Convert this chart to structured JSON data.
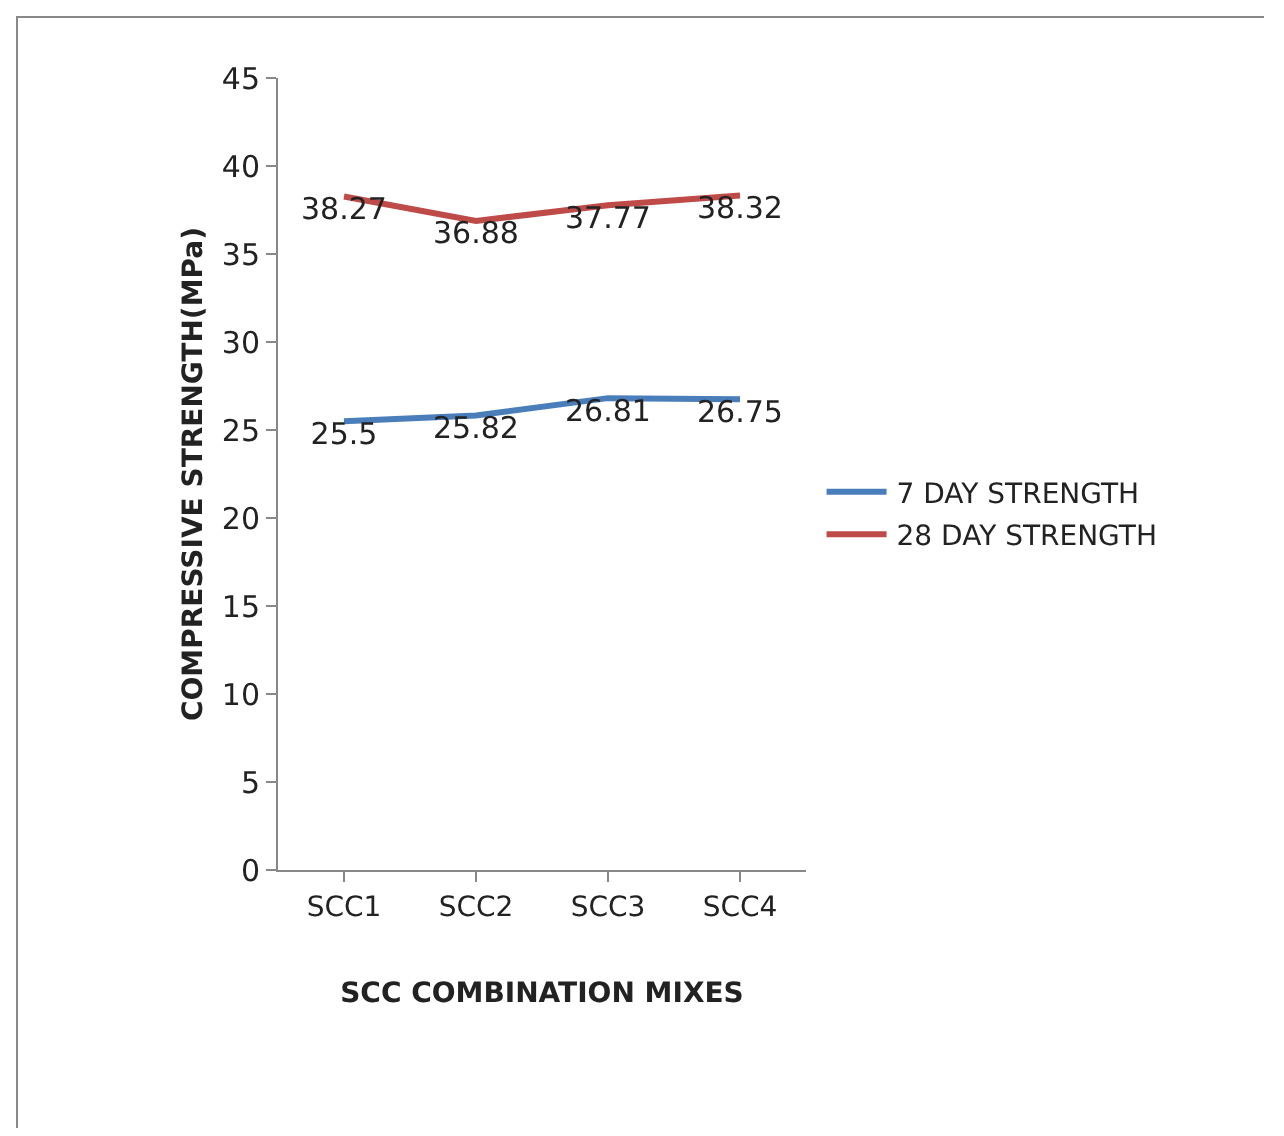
{
  "chart_data": {
    "type": "line",
    "xlabel": "SCC COMBINATION MIXES",
    "ylabel": "COMPRESSIVE STRENGTH(MPa)",
    "categories": [
      "SCC1",
      "SCC2",
      "SCC3",
      "SCC4"
    ],
    "series": [
      {
        "name": "7 DAY STRENGTH",
        "color": "#4a7ebb",
        "values": [
          25.5,
          25.82,
          26.81,
          26.75
        ]
      },
      {
        "name": "28 DAY STRENGTH",
        "color": "#be4b48",
        "values": [
          38.27,
          36.88,
          37.77,
          38.32
        ]
      }
    ],
    "ylim": [
      0,
      45
    ],
    "yticks": [
      0,
      5,
      10,
      15,
      20,
      25,
      30,
      35,
      40,
      45
    ],
    "grid": false,
    "legend": "right",
    "marker": "none",
    "data_labels": true
  }
}
